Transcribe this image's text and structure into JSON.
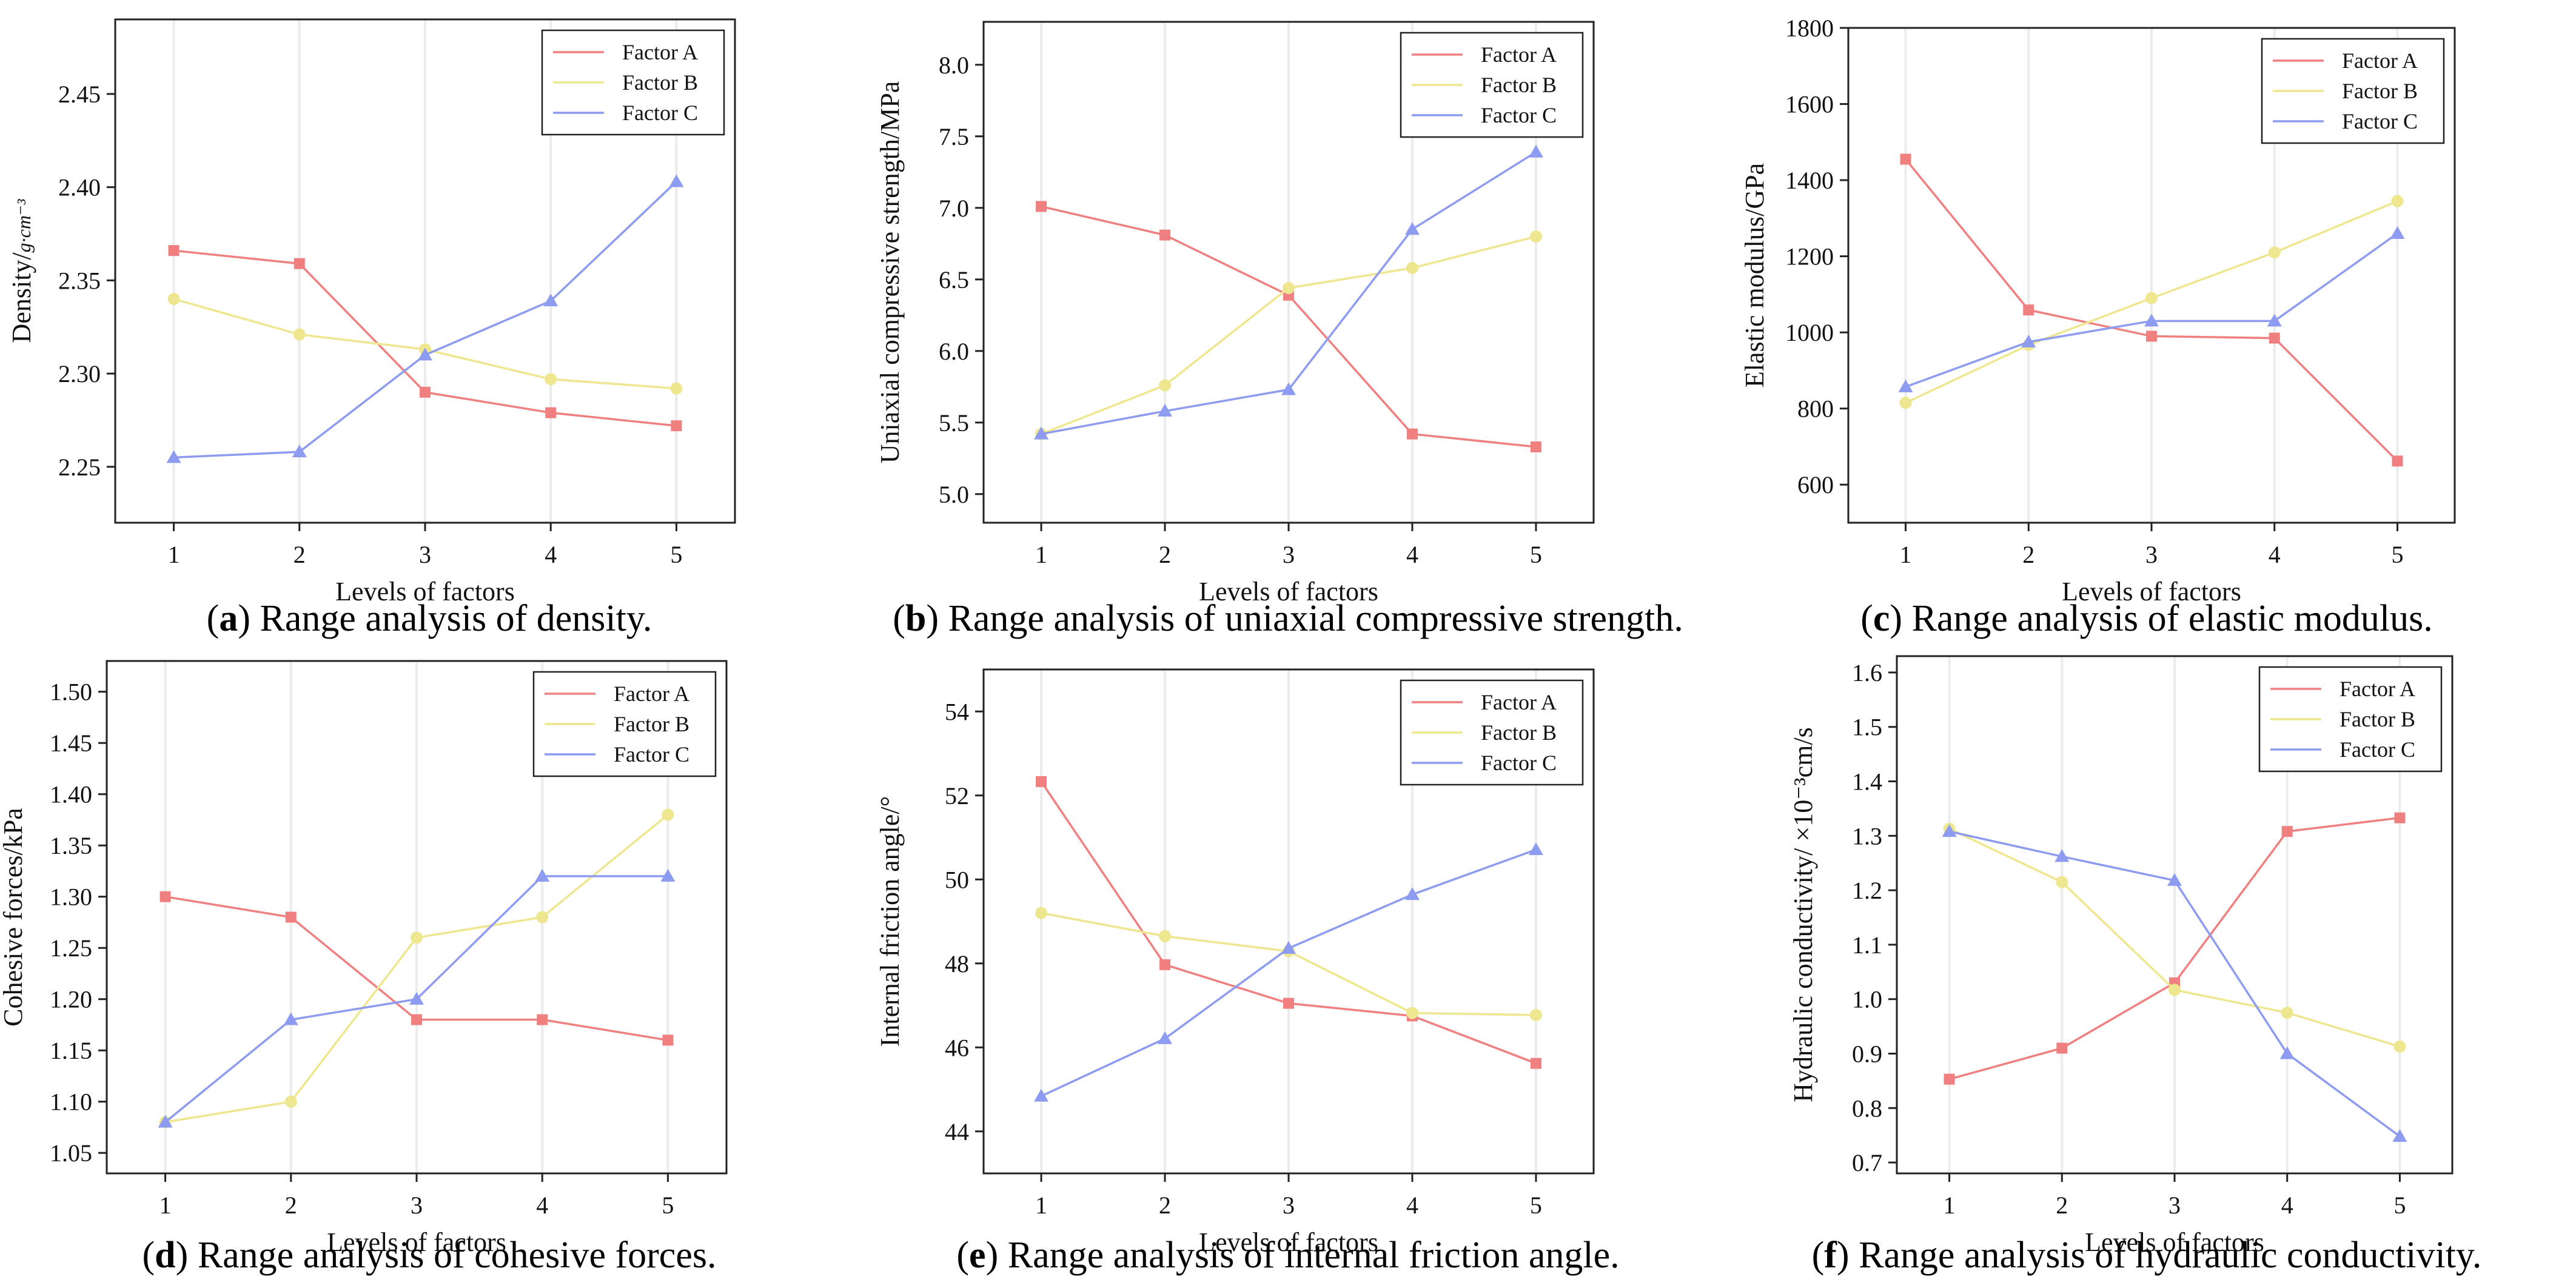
{
  "colors": {
    "factor_a": "#f08080",
    "factor_b": "#eee78f",
    "factor_c": "#8d9cf0",
    "axis": "#222222",
    "grid": "#ececec"
  },
  "chart_data": [
    {
      "id": "a",
      "type": "line",
      "caption": {
        "letter": "a",
        "text": "Range analysis of density."
      },
      "xlabel": "Levels of factors",
      "ylabel": "Density/",
      "ylabel_unit": "g·cm⁻³",
      "categories": [
        "1",
        "2",
        "3",
        "4",
        "5"
      ],
      "ylim": [
        2.22,
        2.49
      ],
      "yticks": [
        "2.25",
        "2.30",
        "2.35",
        "2.40",
        "2.45"
      ],
      "legend_position": "top-right",
      "series": [
        {
          "name": "Factor A",
          "marker": "square",
          "color_key": "factor_a",
          "values": [
            2.366,
            2.359,
            2.29,
            2.279,
            2.272
          ]
        },
        {
          "name": "Factor B",
          "marker": "circle",
          "color_key": "factor_b",
          "values": [
            2.34,
            2.321,
            2.313,
            2.297,
            2.292
          ]
        },
        {
          "name": "Factor C",
          "marker": "triangle",
          "color_key": "factor_c",
          "values": [
            2.255,
            2.258,
            2.31,
            2.339,
            2.403
          ]
        }
      ]
    },
    {
      "id": "b",
      "type": "line",
      "caption": {
        "letter": "b",
        "text": "Range analysis of uniaxial compressive strength."
      },
      "xlabel": "Levels of factors",
      "ylabel": "Uniaxial compressive strength/MPa",
      "categories": [
        "1",
        "2",
        "3",
        "4",
        "5"
      ],
      "ylim": [
        4.8,
        8.3
      ],
      "yticks": [
        "5.0",
        "5.5",
        "6.0",
        "6.5",
        "7.0",
        "7.5",
        "8.0"
      ],
      "legend_position": "top-right",
      "series": [
        {
          "name": "Factor A",
          "marker": "square",
          "color_key": "factor_a",
          "values": [
            7.01,
            6.81,
            6.39,
            5.42,
            5.33
          ]
        },
        {
          "name": "Factor B",
          "marker": "circle",
          "color_key": "factor_b",
          "values": [
            5.42,
            5.76,
            6.44,
            6.58,
            6.8
          ]
        },
        {
          "name": "Factor C",
          "marker": "triangle",
          "color_key": "factor_c",
          "values": [
            5.42,
            5.58,
            5.73,
            6.85,
            7.39
          ]
        }
      ]
    },
    {
      "id": "c",
      "type": "line",
      "caption": {
        "letter": "c",
        "text": "Range analysis of elastic modulus."
      },
      "xlabel": "Levels of factors",
      "ylabel": "Elastic modulus/GPa",
      "categories": [
        "1",
        "2",
        "3",
        "4",
        "5"
      ],
      "ylim": [
        500,
        1800
      ],
      "yticks": [
        "600",
        "800",
        "1000",
        "1200",
        "1400",
        "1600",
        "1800"
      ],
      "legend_position": "top-right",
      "series": [
        {
          "name": "Factor A",
          "marker": "square",
          "color_key": "factor_a",
          "values": [
            1455,
            1059,
            990,
            985,
            662
          ]
        },
        {
          "name": "Factor B",
          "marker": "circle",
          "color_key": "factor_b",
          "values": [
            815,
            967,
            1090,
            1210,
            1345
          ]
        },
        {
          "name": "Factor C",
          "marker": "triangle",
          "color_key": "factor_c",
          "values": [
            857,
            975,
            1030,
            1030,
            1260
          ]
        }
      ]
    },
    {
      "id": "d",
      "type": "line",
      "caption": {
        "letter": "d",
        "text": "Range analysis of cohesive forces."
      },
      "xlabel": "Levels of factors",
      "ylabel": "Cohesive forces/kPa",
      "categories": [
        "1",
        "2",
        "3",
        "4",
        "5"
      ],
      "ylim": [
        1.03,
        1.53
      ],
      "yticks": [
        "1.05",
        "1.10",
        "1.15",
        "1.20",
        "1.25",
        "1.30",
        "1.35",
        "1.40",
        "1.45",
        "1.50"
      ],
      "legend_position": "top-right",
      "series": [
        {
          "name": "Factor A",
          "marker": "square",
          "color_key": "factor_a",
          "values": [
            1.3,
            1.28,
            1.18,
            1.18,
            1.16
          ]
        },
        {
          "name": "Factor B",
          "marker": "circle",
          "color_key": "factor_b",
          "values": [
            1.08,
            1.1,
            1.26,
            1.28,
            1.38
          ]
        },
        {
          "name": "Factor C",
          "marker": "triangle",
          "color_key": "factor_c",
          "values": [
            1.08,
            1.18,
            1.2,
            1.32,
            1.32
          ]
        }
      ]
    },
    {
      "id": "e",
      "type": "line",
      "caption": {
        "letter": "e",
        "text": "Range analysis of internal friction angle."
      },
      "xlabel": "Levels of factors",
      "ylabel": "Internal friction angle/°",
      "categories": [
        "1",
        "2",
        "3",
        "4",
        "5"
      ],
      "ylim": [
        43,
        55
      ],
      "yticks": [
        "44",
        "46",
        "48",
        "50",
        "52",
        "54"
      ],
      "legend_position": "top-right",
      "series": [
        {
          "name": "Factor A",
          "marker": "square",
          "color_key": "factor_a",
          "values": [
            52.33,
            47.97,
            47.05,
            46.75,
            45.62
          ]
        },
        {
          "name": "Factor B",
          "marker": "circle",
          "color_key": "factor_b",
          "values": [
            49.2,
            48.65,
            48.29,
            46.82,
            46.77
          ]
        },
        {
          "name": "Factor C",
          "marker": "triangle",
          "color_key": "factor_c",
          "values": [
            44.84,
            46.21,
            48.36,
            49.64,
            50.71
          ]
        }
      ]
    },
    {
      "id": "f",
      "type": "line",
      "caption": {
        "letter": "f",
        "text": "Range analysis of hydraulic conductivity."
      },
      "xlabel": "Levels of factors",
      "ylabel": "Hydraulic conductivity/ ×10⁻³cm/s",
      "categories": [
        "1",
        "2",
        "3",
        "4",
        "5"
      ],
      "ylim": [
        0.68,
        1.63
      ],
      "yticks": [
        "0.7",
        "0.8",
        "0.9",
        "1.0",
        "1.1",
        "1.2",
        "1.3",
        "1.4",
        "1.5",
        "1.6"
      ],
      "legend_position": "top-right",
      "series": [
        {
          "name": "Factor A",
          "marker": "square",
          "color_key": "factor_a",
          "values": [
            0.853,
            0.91,
            1.03,
            1.308,
            1.333
          ]
        },
        {
          "name": "Factor B",
          "marker": "circle",
          "color_key": "factor_b",
          "values": [
            1.313,
            1.215,
            1.017,
            0.975,
            0.913
          ]
        },
        {
          "name": "Factor C",
          "marker": "triangle",
          "color_key": "factor_c",
          "values": [
            1.308,
            1.262,
            1.218,
            0.9,
            0.748
          ]
        }
      ]
    }
  ]
}
